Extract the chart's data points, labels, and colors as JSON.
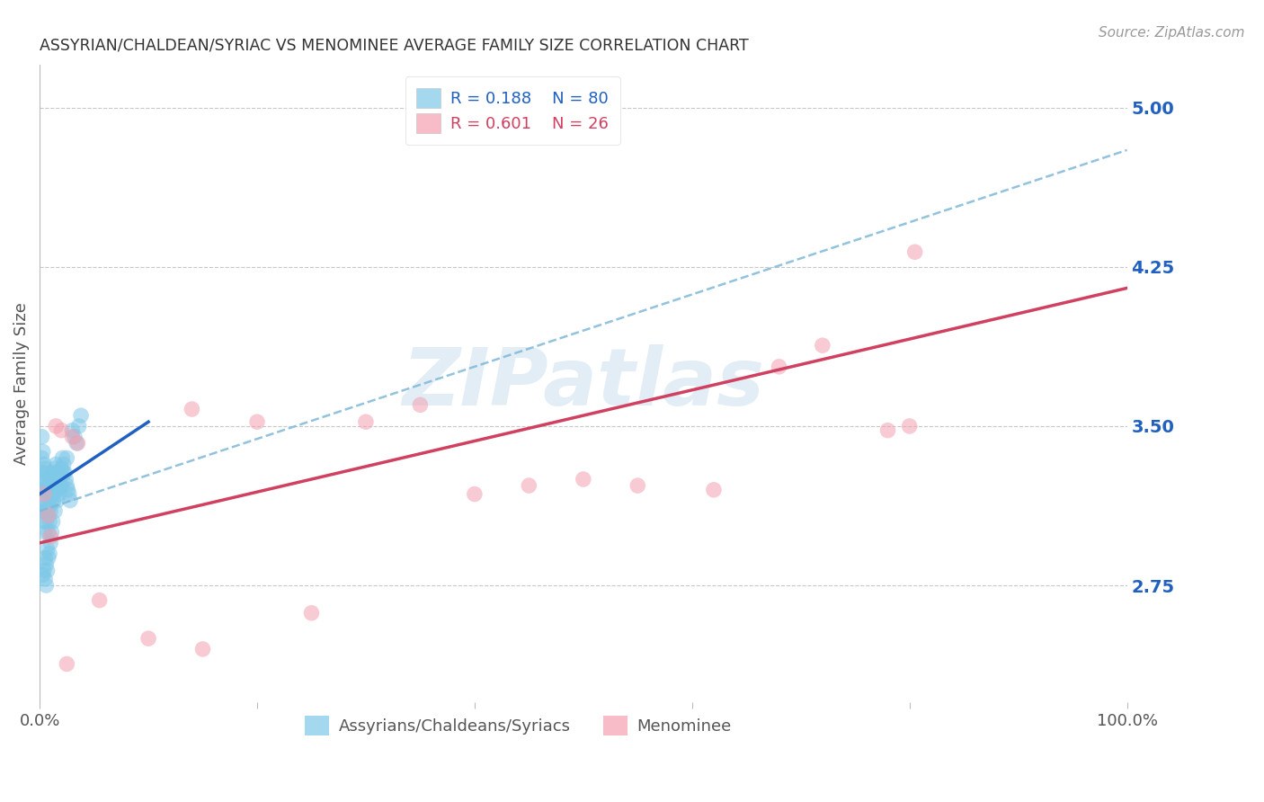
{
  "title": "ASSYRIAN/CHALDEAN/SYRIAC VS MENOMINEE AVERAGE FAMILY SIZE CORRELATION CHART",
  "source": "Source: ZipAtlas.com",
  "ylabel": "Average Family Size",
  "y_ticks": [
    2.75,
    3.5,
    4.25,
    5.0
  ],
  "x_min": 0.0,
  "x_max": 100.0,
  "y_min": 2.2,
  "y_max": 5.2,
  "blue_R": "0.188",
  "blue_N": "80",
  "pink_R": "0.601",
  "pink_N": "26",
  "blue_color": "#7ec8e8",
  "pink_color": "#f4a0b0",
  "blue_line_color": "#2060c0",
  "pink_line_color": "#d04060",
  "blue_dash_color": "#80b8d8",
  "legend_label_blue": "Assyrians/Chaldeans/Syriacs",
  "legend_label_pink": "Menominee",
  "blue_scatter_x": [
    0.1,
    0.2,
    0.2,
    0.2,
    0.3,
    0.3,
    0.3,
    0.3,
    0.4,
    0.4,
    0.4,
    0.4,
    0.5,
    0.5,
    0.5,
    0.5,
    0.6,
    0.6,
    0.6,
    0.6,
    0.7,
    0.7,
    0.7,
    0.8,
    0.8,
    0.8,
    0.8,
    0.9,
    0.9,
    0.9,
    1.0,
    1.0,
    1.0,
    1.1,
    1.1,
    1.2,
    1.2,
    1.3,
    1.3,
    1.4,
    1.4,
    1.5,
    1.5,
    1.6,
    1.7,
    1.8,
    1.9,
    2.0,
    2.1,
    2.2,
    2.3,
    2.4,
    2.5,
    2.6,
    2.7,
    2.8,
    3.0,
    3.2,
    3.4,
    3.6,
    0.3,
    0.4,
    0.5,
    0.5,
    0.6,
    0.6,
    0.7,
    0.7,
    0.8,
    0.9,
    1.0,
    1.1,
    1.2,
    1.4,
    1.6,
    1.8,
    2.0,
    2.2,
    2.5,
    3.8
  ],
  "blue_scatter_y": [
    3.25,
    3.45,
    3.35,
    3.2,
    3.38,
    3.28,
    3.18,
    3.1,
    3.32,
    3.22,
    3.12,
    3.05,
    3.3,
    3.2,
    3.1,
    3.0,
    3.28,
    3.2,
    3.12,
    3.05,
    3.25,
    3.18,
    3.1,
    3.22,
    3.15,
    3.08,
    3.0,
    3.2,
    3.12,
    3.05,
    3.25,
    3.18,
    3.1,
    3.22,
    3.15,
    3.28,
    3.18,
    3.25,
    3.15,
    3.3,
    3.2,
    3.32,
    3.22,
    3.28,
    3.2,
    3.25,
    3.22,
    3.3,
    3.35,
    3.32,
    3.28,
    3.25,
    3.22,
    3.2,
    3.18,
    3.15,
    3.48,
    3.45,
    3.42,
    3.5,
    2.8,
    2.82,
    2.78,
    2.88,
    2.75,
    2.85,
    2.82,
    2.92,
    2.88,
    2.9,
    2.95,
    3.0,
    3.05,
    3.1,
    3.15,
    3.18,
    3.22,
    3.28,
    3.35,
    3.55
  ],
  "pink_scatter_x": [
    0.4,
    0.8,
    1.0,
    1.5,
    2.0,
    3.0,
    3.5,
    5.5,
    14.0,
    20.0,
    25.0,
    30.0,
    55.0,
    62.0,
    68.0,
    72.0,
    78.0,
    80.0,
    80.5,
    40.0,
    45.0,
    10.0,
    15.0,
    35.0,
    50.0,
    2.5
  ],
  "pink_scatter_y": [
    3.18,
    3.08,
    2.98,
    3.5,
    3.48,
    3.45,
    3.42,
    2.68,
    3.58,
    3.52,
    2.62,
    3.52,
    3.22,
    3.2,
    3.78,
    3.88,
    3.48,
    3.5,
    4.32,
    3.18,
    3.22,
    2.5,
    2.45,
    3.6,
    3.25,
    2.38
  ],
  "watermark_text": "ZIPatlas",
  "grid_color": "#c8c8c8",
  "background_color": "#ffffff",
  "title_color": "#333333",
  "axis_label_color": "#555555",
  "right_axis_color": "#2060c0",
  "source_color": "#999999",
  "blue_trend_x0": 0.0,
  "blue_trend_y0": 3.18,
  "blue_trend_x1": 10.0,
  "blue_trend_y1": 3.52,
  "pink_trend_x0": 0.0,
  "pink_trend_y0": 2.95,
  "pink_trend_x1": 100.0,
  "pink_trend_y1": 4.15,
  "dash_trend_x0": 0.0,
  "dash_trend_y0": 3.1,
  "dash_trend_x1": 100.0,
  "dash_trend_y1": 4.8
}
